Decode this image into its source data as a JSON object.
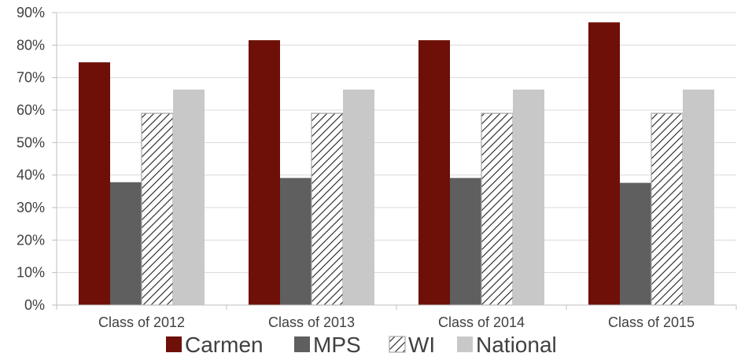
{
  "chart_data": {
    "type": "bar",
    "categories": [
      "Class of 2012",
      "Class of 2013",
      "Class of 2014",
      "Class of 2015"
    ],
    "series": [
      {
        "name": "Carmen",
        "values": [
          74.7,
          81.5,
          81.5,
          87.0
        ],
        "color": "#6e1007",
        "pattern": "solid"
      },
      {
        "name": "MPS",
        "values": [
          37.8,
          39.1,
          39.1,
          37.6
        ],
        "color": "#5f5f5f",
        "pattern": "solid"
      },
      {
        "name": "WI",
        "values": [
          59.0,
          59.0,
          59.0,
          59.0
        ],
        "color": "#ffffff",
        "pattern": "diagonal-hatch"
      },
      {
        "name": "National",
        "values": [
          66.3,
          66.3,
          66.3,
          66.3
        ],
        "color": "#c8c8c8",
        "pattern": "solid"
      }
    ],
    "y_ticks": [
      "0%",
      "10%",
      "20%",
      "30%",
      "40%",
      "50%",
      "60%",
      "70%",
      "80%",
      "90%"
    ],
    "ylim": [
      0,
      90
    ],
    "y_unit": "%",
    "grid": true,
    "legend_position": "bottom",
    "title": "",
    "xlabel": "",
    "ylabel": ""
  }
}
